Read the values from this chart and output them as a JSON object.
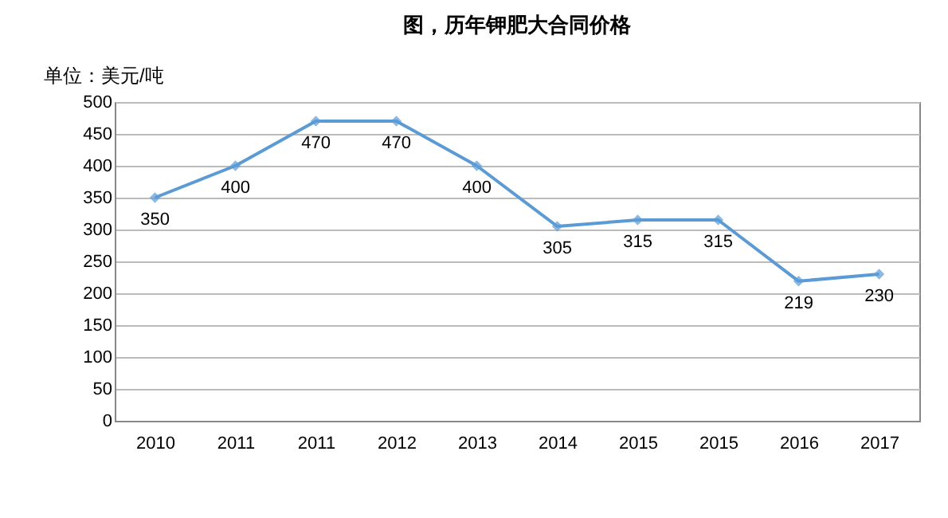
{
  "chart_data": {
    "type": "line",
    "title": "图，历年钾肥大合同价格",
    "ylabel": "单位：美元/吨",
    "categories": [
      "2010",
      "2011",
      "2011",
      "2012",
      "2013",
      "2014",
      "2015",
      "2015",
      "2016",
      "2017"
    ],
    "series": [
      {
        "color": "#5b9bd5",
        "values": [
          350,
          400,
          470,
          470,
          400,
          305,
          315,
          315,
          219,
          230
        ]
      }
    ],
    "ylim": [
      0,
      500
    ],
    "yticks": [
      0,
      50,
      100,
      150,
      200,
      250,
      300,
      350,
      400,
      450,
      500
    ],
    "grid": "y",
    "marker": "diamond",
    "line_style": "solid",
    "data_labels": true
  }
}
